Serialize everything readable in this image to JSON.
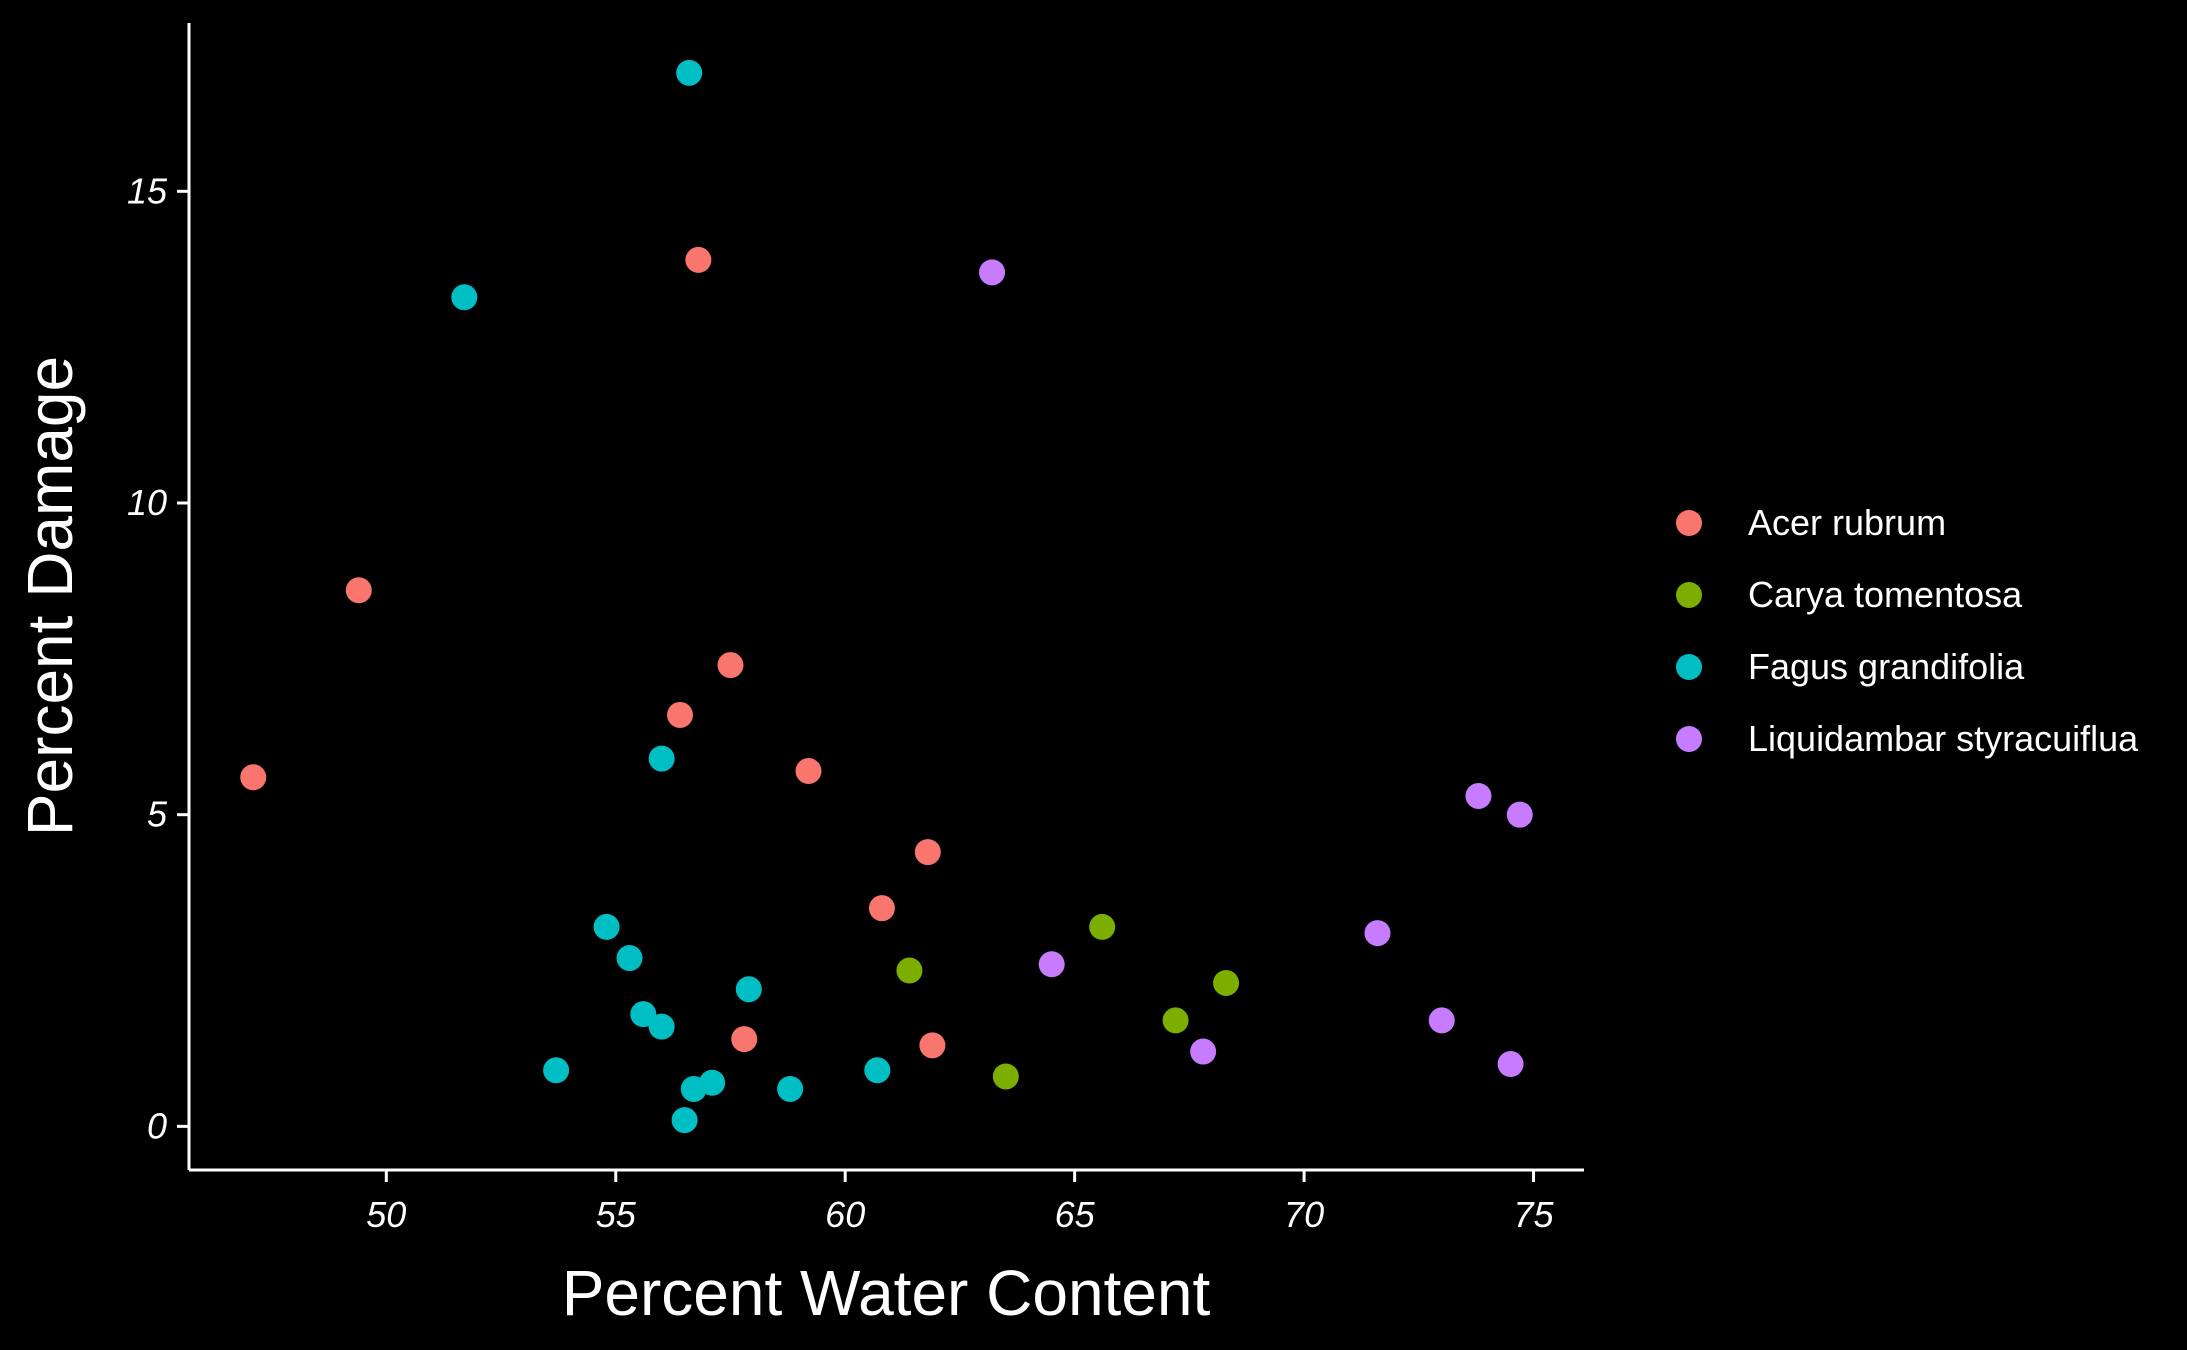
{
  "chart_data": {
    "type": "scatter",
    "xlabel": "Percent Water Content",
    "ylabel": "Percent Damage",
    "xlim": [
      45.7,
      76.1
    ],
    "ylim": [
      -0.7,
      17.7
    ],
    "xticks": [
      50,
      55,
      60,
      65,
      70,
      75
    ],
    "yticks": [
      0,
      5,
      10,
      15
    ],
    "grid": false,
    "legend_position": "right",
    "series": [
      {
        "name": "Acer rubrum",
        "color": "#F8766D",
        "points": [
          [
            47.1,
            5.6
          ],
          [
            49.4,
            8.6
          ],
          [
            56.4,
            6.6
          ],
          [
            56.8,
            13.9
          ],
          [
            57.5,
            7.4
          ],
          [
            59.2,
            5.7
          ],
          [
            61.8,
            4.4
          ],
          [
            60.8,
            3.5
          ],
          [
            57.8,
            1.4
          ],
          [
            61.9,
            1.3
          ]
        ]
      },
      {
        "name": "Carya tomentosa",
        "color": "#7CAE00",
        "points": [
          [
            61.4,
            2.5
          ],
          [
            63.5,
            0.8
          ],
          [
            65.6,
            3.2
          ],
          [
            67.2,
            1.7
          ],
          [
            68.3,
            2.3
          ]
        ]
      },
      {
        "name": "Fagus grandifolia",
        "color": "#00BFC4",
        "points": [
          [
            56.6,
            16.9
          ],
          [
            51.7,
            13.3
          ],
          [
            56.0,
            5.9
          ],
          [
            54.8,
            3.2
          ],
          [
            55.3,
            2.7
          ],
          [
            57.9,
            2.2
          ],
          [
            55.6,
            1.8
          ],
          [
            56.0,
            1.6
          ],
          [
            53.7,
            0.9
          ],
          [
            56.7,
            0.6
          ],
          [
            57.1,
            0.7
          ],
          [
            56.5,
            0.1
          ],
          [
            58.8,
            0.6
          ],
          [
            60.7,
            0.9
          ]
        ]
      },
      {
        "name": "Liquidambar styracuiflua",
        "color": "#C77CFF",
        "points": [
          [
            63.2,
            13.7
          ],
          [
            64.5,
            2.6
          ],
          [
            67.8,
            1.2
          ],
          [
            71.6,
            3.1
          ],
          [
            73.0,
            1.7
          ],
          [
            73.8,
            5.3
          ],
          [
            74.7,
            5.0
          ],
          [
            74.5,
            1.0
          ]
        ]
      }
    ]
  }
}
